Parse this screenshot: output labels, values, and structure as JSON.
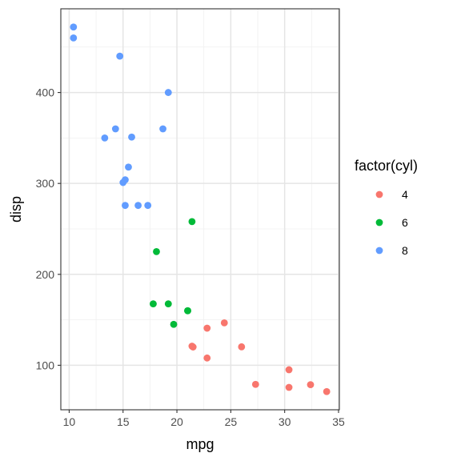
{
  "chart_data": {
    "type": "scatter",
    "title": "",
    "xlabel": "mpg",
    "ylabel": "disp",
    "xlim": [
      9.225,
      35.075
    ],
    "ylim": [
      51.055,
      492.045
    ],
    "x_ticks": [
      10,
      15,
      20,
      25,
      30,
      35
    ],
    "y_ticks": [
      100,
      200,
      300,
      400
    ],
    "grid": true,
    "legend": {
      "title": "factor(cyl)",
      "placement": "right"
    },
    "series": [
      {
        "name": "4",
        "color": "#F8766D",
        "points": [
          {
            "x": 22.8,
            "y": 108
          },
          {
            "x": 24.4,
            "y": 146.7
          },
          {
            "x": 22.8,
            "y": 140.8
          },
          {
            "x": 32.4,
            "y": 78.7
          },
          {
            "x": 30.4,
            "y": 75.7
          },
          {
            "x": 33.9,
            "y": 71.1
          },
          {
            "x": 21.5,
            "y": 120.1
          },
          {
            "x": 27.3,
            "y": 79
          },
          {
            "x": 26.0,
            "y": 120.3
          },
          {
            "x": 30.4,
            "y": 95.1
          },
          {
            "x": 21.4,
            "y": 121
          }
        ]
      },
      {
        "name": "6",
        "color": "#00BA38",
        "points": [
          {
            "x": 21.0,
            "y": 160
          },
          {
            "x": 21.0,
            "y": 160
          },
          {
            "x": 21.4,
            "y": 258
          },
          {
            "x": 18.1,
            "y": 225
          },
          {
            "x": 19.2,
            "y": 167.6
          },
          {
            "x": 17.8,
            "y": 167.6
          },
          {
            "x": 19.7,
            "y": 145
          }
        ]
      },
      {
        "name": "8",
        "color": "#619CFF",
        "points": [
          {
            "x": 18.7,
            "y": 360
          },
          {
            "x": 14.3,
            "y": 360
          },
          {
            "x": 16.4,
            "y": 275.8
          },
          {
            "x": 17.3,
            "y": 275.8
          },
          {
            "x": 15.2,
            "y": 275.8
          },
          {
            "x": 10.4,
            "y": 472
          },
          {
            "x": 10.4,
            "y": 460
          },
          {
            "x": 14.7,
            "y": 440
          },
          {
            "x": 15.5,
            "y": 318
          },
          {
            "x": 15.2,
            "y": 304
          },
          {
            "x": 13.3,
            "y": 350
          },
          {
            "x": 19.2,
            "y": 400
          },
          {
            "x": 15.8,
            "y": 351
          },
          {
            "x": 15.0,
            "y": 301
          }
        ]
      }
    ]
  }
}
